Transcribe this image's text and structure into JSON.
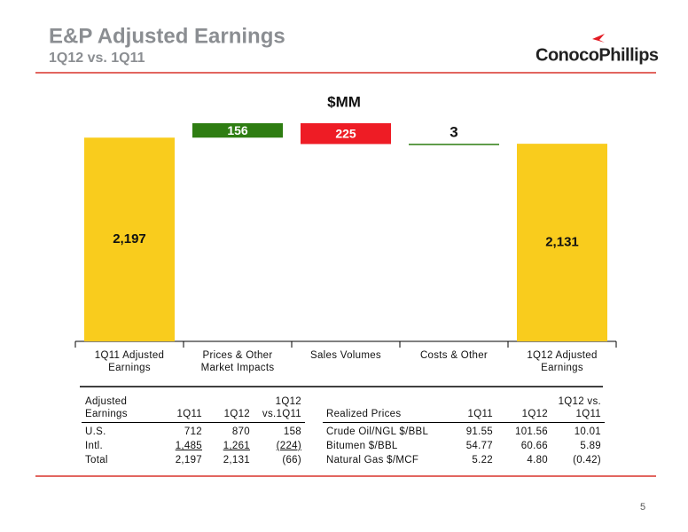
{
  "header": {
    "title": "E&P Adjusted Earnings",
    "subtitle": "1Q12 vs. 1Q11",
    "logo": "ConocoPhillips"
  },
  "chart_data": {
    "type": "waterfall",
    "subtitle": "$MM",
    "categories": [
      "1Q11 Adjusted Earnings",
      "Prices & Other Market Impacts",
      "Sales Volumes",
      "Costs & Other",
      "1Q12 Adjusted Earnings"
    ],
    "values": [
      2197,
      156,
      -225,
      3,
      2131
    ],
    "value_labels": [
      "2,197",
      "156",
      "225",
      "3",
      "2,131"
    ],
    "colors": {
      "total": "#f9cc1d",
      "increase": "#2e7d12",
      "decrease": "#ee1c25"
    },
    "ylim": [
      0,
      2400
    ]
  },
  "table_left": {
    "headers": [
      "Adjusted Earnings",
      "1Q11",
      "1Q12",
      "1Q12 vs.1Q11"
    ],
    "rows": [
      [
        "U.S.",
        "712",
        "870",
        "158"
      ],
      [
        "Intl.",
        "1,485",
        "1,261",
        "(224)"
      ],
      [
        "Total",
        "2,197",
        "2,131",
        "(66)"
      ]
    ]
  },
  "table_right": {
    "headers": [
      "Realized Prices",
      "1Q11",
      "1Q12",
      "1Q12 vs. 1Q11"
    ],
    "rows": [
      [
        "Crude Oil/NGL $/BBL",
        "91.55",
        "101.56",
        "10.01"
      ],
      [
        "Bitumen $/BBL",
        "54.77",
        "60.66",
        "5.89"
      ],
      [
        "Natural Gas $/MCF",
        "5.22",
        "4.80",
        "(0.42)"
      ]
    ]
  },
  "page_number": "5"
}
